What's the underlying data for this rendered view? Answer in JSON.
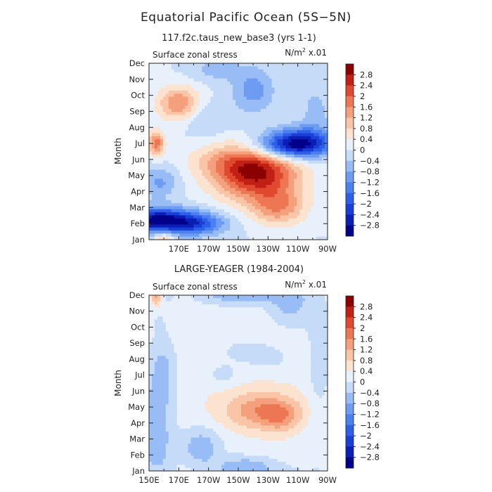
{
  "figure": {
    "title": "Equatorial Pacific Ocean (5S−5N)"
  },
  "chart_data": [
    {
      "type": "heatmap",
      "subtitle": "117.f2c.taus_new_base3 (yrs 1-1)",
      "field_label": "Surface zonal stress",
      "units_label": "N/m",
      "units_sup": "2",
      "units_suffix": " x.01",
      "ylabel": "Month",
      "xticks": [
        "170E",
        "170W",
        "150W",
        "130W",
        "110W",
        "90W"
      ],
      "xlim_deg_east": [
        150,
        270
      ],
      "yticks": [
        "Jan",
        "Feb",
        "Mar",
        "Apr",
        "May",
        "Jun",
        "Jul",
        "Aug",
        "Sep",
        "Oct",
        "Nov",
        "Dec"
      ],
      "colorbar_labels": [
        "2.8",
        "2.4",
        "2",
        "1.6",
        "1.2",
        "0.8",
        "0.4",
        "0",
        "−0.4",
        "−0.8",
        "−1.2",
        "−1.6",
        "−2",
        "−2.4",
        "−2.8"
      ],
      "contour_levels": [
        -2.8,
        -2.4,
        -2,
        -1.6,
        -1.2,
        -0.8,
        -0.4,
        0,
        0.4,
        0.8,
        1.2,
        1.6,
        2,
        2.4,
        2.8
      ],
      "colors": [
        "#00008b",
        "#0a1fb4",
        "#1a3fd6",
        "#2f5ee8",
        "#4a80ef",
        "#6d9cf2",
        "#98bcf5",
        "#c6dbf8",
        "#e8f1fb",
        "#fbe3d0",
        "#f9c5a6",
        "#f4a07c",
        "#ed7755",
        "#e0492f",
        "#c22015",
        "#8b0000"
      ],
      "features": [
        {
          "lon": 155,
          "mon": 1.2,
          "amp": -3.0,
          "slon": 16,
          "smon": 0.55
        },
        {
          "lon": 182,
          "mon": 1.0,
          "amp": -1.8,
          "slon": 14,
          "smon": 0.5
        },
        {
          "lon": 160,
          "mon": 0.0,
          "amp": 1.2,
          "slon": 5,
          "smon": 0.4
        },
        {
          "lon": 237,
          "mon": 2.0,
          "amp": 1.4,
          "slon": 13,
          "smon": 0.8
        },
        {
          "lon": 222,
          "mon": 4.0,
          "amp": 2.6,
          "slon": 20,
          "smon": 1.1
        },
        {
          "lon": 210,
          "mon": 5.0,
          "amp": 1.0,
          "slon": 22,
          "smon": 0.8
        },
        {
          "lon": 157,
          "mon": 3.6,
          "amp": -0.9,
          "slon": 9,
          "smon": 0.7
        },
        {
          "lon": 240,
          "mon": 5.6,
          "amp": -1.2,
          "slon": 18,
          "smon": 0.5
        },
        {
          "lon": 250,
          "mon": 6.1,
          "amp": -2.6,
          "slon": 16,
          "smon": 0.6
        },
        {
          "lon": 155,
          "mon": 6.0,
          "amp": 1.8,
          "slon": 4,
          "smon": 0.55
        },
        {
          "lon": 170,
          "mon": 8.5,
          "amp": 1.6,
          "slon": 10,
          "smon": 0.75
        },
        {
          "lon": 220,
          "mon": 9.3,
          "amp": -1.0,
          "slon": 10,
          "smon": 1.0
        },
        {
          "lon": 195,
          "mon": 10.6,
          "amp": -0.6,
          "slon": 12,
          "smon": 0.5
        },
        {
          "lon": 262,
          "mon": 8.0,
          "amp": -0.5,
          "slon": 8,
          "smon": 1.5
        },
        {
          "lon": 188,
          "mon": 7.5,
          "amp": -0.5,
          "slon": 10,
          "smon": 0.8
        }
      ]
    },
    {
      "type": "heatmap",
      "subtitle": "LARGE-YEAGER (1984-2004)",
      "field_label": "Surface zonal stress",
      "units_label": "N/m",
      "units_sup": "2",
      "units_suffix": " x.01",
      "ylabel": "Month",
      "xticks": [
        "150E",
        "170E",
        "170W",
        "150W",
        "130W",
        "110W",
        "90W"
      ],
      "xlim_deg_east": [
        150,
        270
      ],
      "yticks": [
        "Jan",
        "Feb",
        "Mar",
        "Apr",
        "May",
        "Jun",
        "Jul",
        "Aug",
        "Sep",
        "Oct",
        "Nov",
        "Dec"
      ],
      "colorbar_labels": [
        "2.8",
        "2.4",
        "2",
        "1.6",
        "1.2",
        "0.8",
        "0.4",
        "0",
        "−0.4",
        "−0.8",
        "−1.2",
        "−1.6",
        "−2",
        "−2.4",
        "−2.8"
      ],
      "contour_levels": [
        -2.8,
        -2.4,
        -2,
        -1.6,
        -1.2,
        -0.8,
        -0.4,
        0,
        0.4,
        0.8,
        1.2,
        1.6,
        2,
        2.4,
        2.8
      ],
      "colors": [
        "#00008b",
        "#0a1fb4",
        "#1a3fd6",
        "#2f5ee8",
        "#4a80ef",
        "#6d9cf2",
        "#98bcf5",
        "#c6dbf8",
        "#e8f1fb",
        "#fbe3d0",
        "#f9c5a6",
        "#f4a07c",
        "#ed7755",
        "#e0492f",
        "#c22015",
        "#8b0000"
      ],
      "background": 0.25,
      "features": [
        {
          "lon": 155,
          "mon": 2.5,
          "amp": -0.9,
          "slon": 8,
          "smon": 3.0
        },
        {
          "lon": 160,
          "mon": 6.5,
          "amp": -0.5,
          "slon": 6,
          "smon": 1.5
        },
        {
          "lon": 185,
          "mon": 1.5,
          "amp": -0.9,
          "slon": 10,
          "smon": 0.9
        },
        {
          "lon": 215,
          "mon": 0.2,
          "amp": -1.0,
          "slon": 14,
          "smon": 0.5
        },
        {
          "lon": 210,
          "mon": 11.0,
          "amp": -0.9,
          "slon": 20,
          "smon": 0.45
        },
        {
          "lon": 245,
          "mon": 10.5,
          "amp": -0.8,
          "slon": 10,
          "smon": 1.0
        },
        {
          "lon": 155,
          "mon": 11.0,
          "amp": 1.5,
          "slon": 3,
          "smon": 0.5
        },
        {
          "lon": 228,
          "mon": 3.7,
          "amp": 1.1,
          "slon": 18,
          "smon": 0.8
        },
        {
          "lon": 238,
          "mon": 3.3,
          "amp": 0.6,
          "slon": 8,
          "smon": 0.6
        },
        {
          "lon": 222,
          "mon": 4.2,
          "amp": 0.3,
          "slon": 22,
          "smon": 1.0
        },
        {
          "lon": 215,
          "mon": 7.5,
          "amp": -0.35,
          "slon": 14,
          "smon": 0.6
        },
        {
          "lon": 232,
          "mon": 7.0,
          "amp": -0.3,
          "slon": 10,
          "smon": 0.5
        },
        {
          "lon": 200,
          "mon": 6.0,
          "amp": -0.4,
          "slon": 8,
          "smon": 0.5
        },
        {
          "lon": 264,
          "mon": 6.5,
          "amp": -0.4,
          "slon": 6,
          "smon": 5.0
        }
      ]
    }
  ]
}
